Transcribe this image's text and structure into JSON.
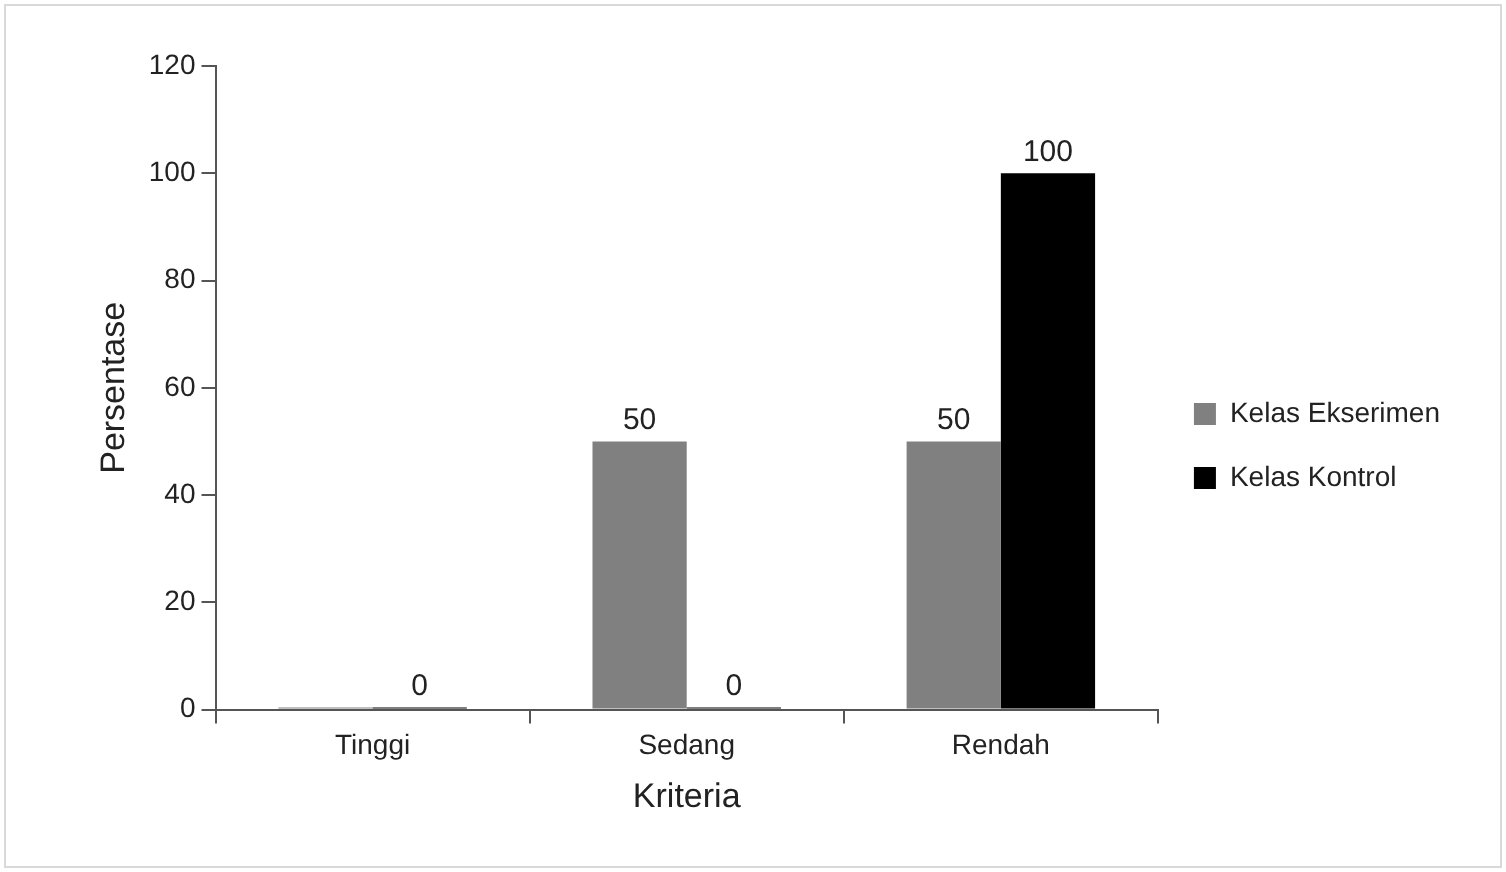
{
  "chart_data": {
    "type": "bar",
    "xlabel": "Kriteria",
    "ylabel": "Persentase",
    "categories": [
      "Tinggi",
      "Sedang",
      "Rendah"
    ],
    "series": [
      {
        "name": "Kelas Ekserimen",
        "color": "#808080",
        "values": [
          0,
          50,
          50
        ],
        "value_labels": [
          null,
          "50",
          "50"
        ]
      },
      {
        "name": "Kelas Kontrol",
        "color": "#000000",
        "values": [
          0,
          0,
          100
        ],
        "value_labels": [
          "0",
          "0",
          "100"
        ]
      }
    ],
    "ylim": [
      0,
      120
    ],
    "yticks": [
      0,
      20,
      40,
      60,
      80,
      100,
      120
    ],
    "grid": false,
    "legend": "right"
  }
}
